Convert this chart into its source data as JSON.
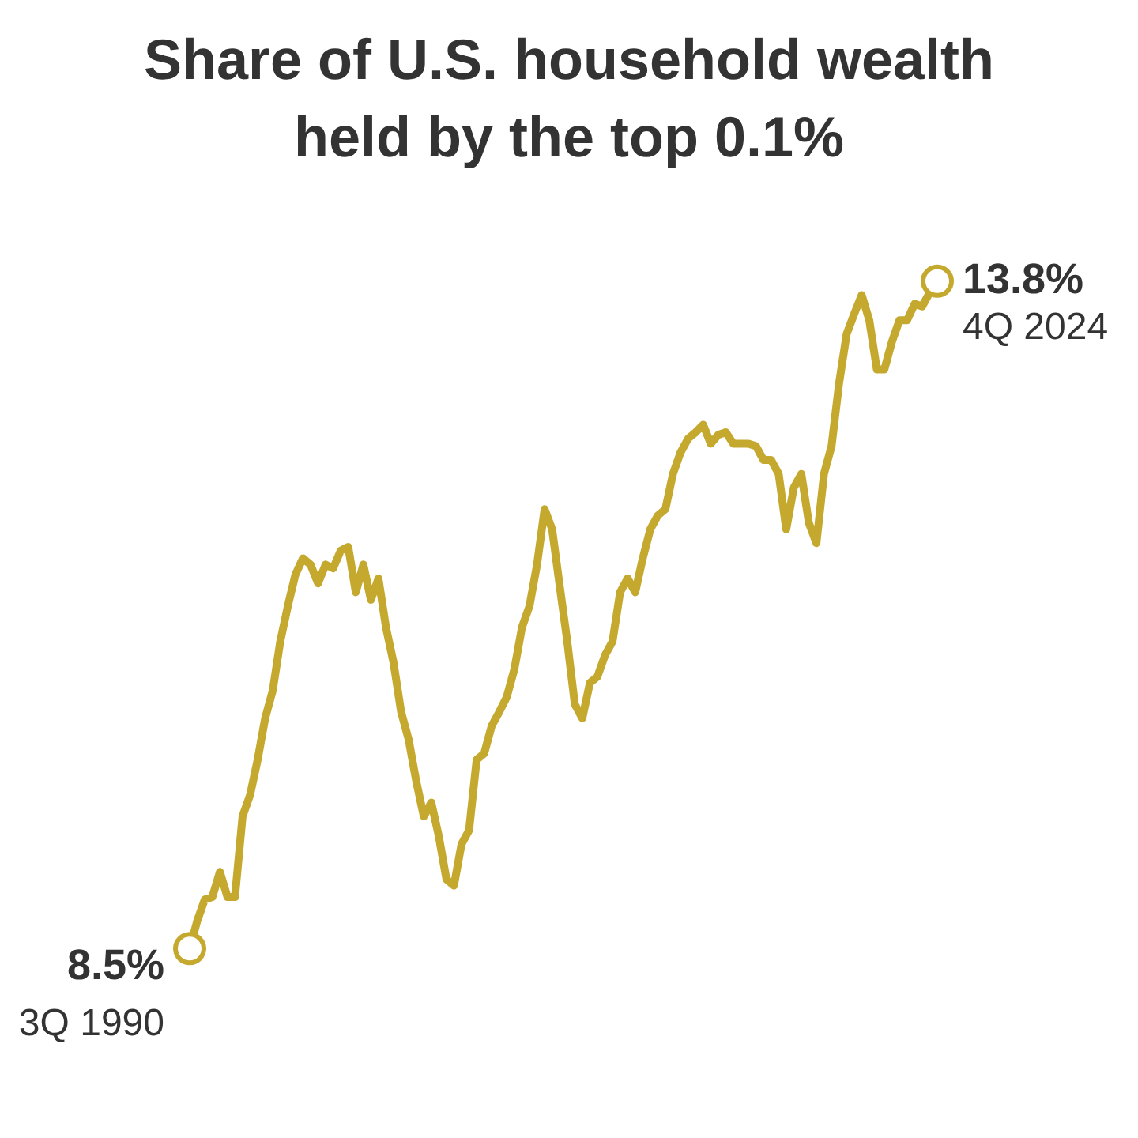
{
  "chart_data": {
    "type": "line",
    "title": "Share of U.S. household wealth held by the top 0.1%",
    "color": "#c4a92e",
    "categories": [
      null,
      null,
      null,
      null,
      null,
      null,
      null,
      null,
      null,
      null,
      null,
      null,
      null,
      null,
      null,
      null,
      null,
      null,
      null,
      null,
      null,
      null,
      null,
      null,
      null,
      null,
      null,
      null,
      null,
      null,
      null,
      null,
      null,
      null,
      null,
      null,
      null,
      null,
      null,
      null,
      null,
      null,
      null,
      null,
      null,
      null,
      null,
      null,
      null,
      null,
      null,
      null,
      null,
      null,
      null,
      null,
      null,
      null,
      null,
      null,
      null,
      null,
      null,
      null,
      null,
      null,
      null,
      null,
      null,
      null,
      null,
      null,
      null,
      null,
      null,
      null,
      null,
      null,
      null,
      null,
      null,
      null,
      null,
      null,
      null,
      null,
      null,
      null,
      null,
      null,
      null,
      null,
      null,
      null,
      null,
      null,
      null,
      null,
      null,
      null
    ],
    "values": [
      8.5,
      8.72,
      8.89,
      8.91,
      9.11,
      8.91,
      8.91,
      9.55,
      9.72,
      10.0,
      10.33,
      10.55,
      10.94,
      11.22,
      11.47,
      11.6,
      11.55,
      11.4,
      11.55,
      11.52,
      11.66,
      11.69,
      11.33,
      11.55,
      11.27,
      11.44,
      11.05,
      10.77,
      10.38,
      10.16,
      9.83,
      9.55,
      9.66,
      9.39,
      9.05,
      9.0,
      9.33,
      9.44,
      10.0,
      10.05,
      10.27,
      10.38,
      10.5,
      10.72,
      11.05,
      11.22,
      11.55,
      11.99,
      11.83,
      11.38,
      10.94,
      10.44,
      10.33,
      10.61,
      10.66,
      10.83,
      10.94,
      11.33,
      11.44,
      11.33,
      11.6,
      11.83,
      11.94,
      11.99,
      12.27,
      12.44,
      12.55,
      12.6,
      12.66,
      12.51,
      12.58,
      12.6,
      12.51,
      12.51,
      12.51,
      12.49,
      12.38,
      12.38,
      12.27,
      11.83,
      12.16,
      12.27,
      11.88,
      11.72,
      12.27,
      12.49,
      12.99,
      13.38,
      13.54,
      13.69,
      13.49,
      13.1,
      13.1,
      13.32,
      13.49,
      13.49,
      13.62,
      13.6,
      13.71,
      13.8
    ],
    "value_labels": [
      "8.5%",
      null,
      null,
      null,
      null,
      null,
      null,
      null,
      null,
      null,
      null,
      null,
      null,
      null,
      null,
      null,
      null,
      null,
      null,
      null,
      null,
      null,
      null,
      null,
      null,
      null,
      null,
      null,
      null,
      null,
      null,
      null,
      null,
      null,
      null,
      null,
      null,
      null,
      null,
      null,
      null,
      null,
      null,
      null,
      null,
      null,
      null,
      null,
      null,
      null,
      null,
      null,
      null,
      null,
      null,
      null,
      null,
      null,
      null,
      null,
      null,
      null,
      null,
      null,
      null,
      null,
      null,
      null,
      null,
      null,
      null,
      null,
      null,
      null,
      null,
      null,
      null,
      null,
      null,
      null,
      null,
      null,
      null,
      null,
      null,
      null,
      null,
      null,
      null,
      null,
      null,
      null,
      null,
      null,
      null,
      null,
      null,
      null,
      null,
      "13.8%"
    ],
    "annotations": [
      "3Q 1990",
      "4Q 2024"
    ]
  }
}
